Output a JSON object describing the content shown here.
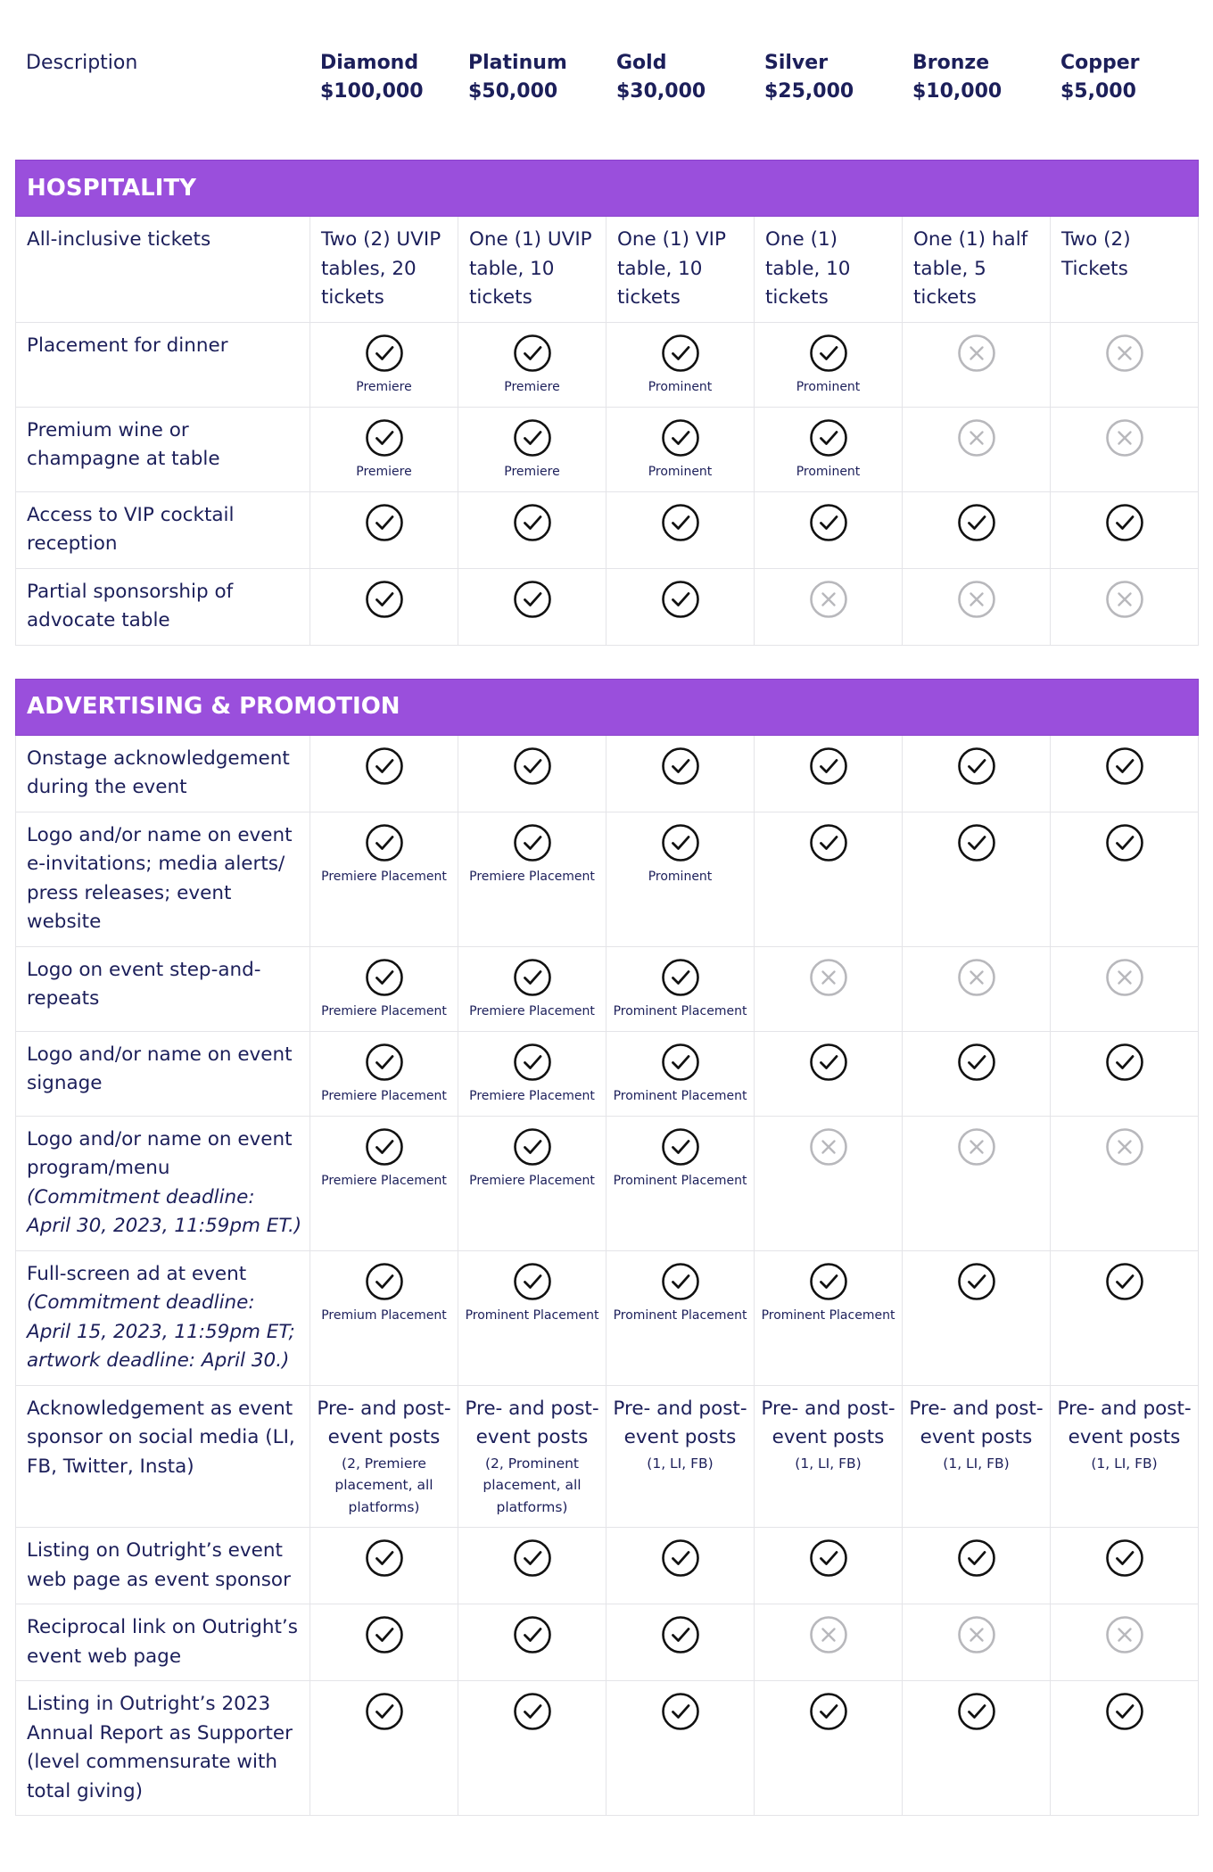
{
  "header": {
    "description": "Description",
    "tiers": [
      {
        "name": "Diamond",
        "price": "$100,000"
      },
      {
        "name": "Platinum",
        "price": "$50,000"
      },
      {
        "name": "Gold",
        "price": "$30,000"
      },
      {
        "name": "Silver",
        "price": "$25,000"
      },
      {
        "name": "Bronze",
        "price": "$10,000"
      },
      {
        "name": "Copper",
        "price": "$5,000"
      }
    ]
  },
  "sections": [
    {
      "title": "HOSPITALITY",
      "rows": [
        {
          "label": "All-inclusive tickets",
          "cells": [
            {
              "text": "Two (2) UVIP tables, 20 tickets"
            },
            {
              "text": "One (1) UVIP table, 10 tickets"
            },
            {
              "text": "One (1) VIP table, 10 tickets"
            },
            {
              "text": "One (1) table, 10 tickets"
            },
            {
              "text": "One (1) half table, 5 tickets"
            },
            {
              "text": "Two (2) Tickets"
            }
          ]
        },
        {
          "label": "Placement for dinner",
          "cells": [
            {
              "included": true,
              "note": "Premiere"
            },
            {
              "included": true,
              "note": "Premiere"
            },
            {
              "included": true,
              "note": "Prominent"
            },
            {
              "included": true,
              "note": "Prominent"
            },
            {
              "included": false
            },
            {
              "included": false
            }
          ]
        },
        {
          "label": "Premium wine or champagne at table",
          "cells": [
            {
              "included": true,
              "note": "Premiere"
            },
            {
              "included": true,
              "note": "Premiere"
            },
            {
              "included": true,
              "note": "Prominent"
            },
            {
              "included": true,
              "note": "Prominent"
            },
            {
              "included": false
            },
            {
              "included": false
            }
          ]
        },
        {
          "label": "Access to VIP cocktail reception",
          "cells": [
            {
              "included": true
            },
            {
              "included": true
            },
            {
              "included": true
            },
            {
              "included": true
            },
            {
              "included": true
            },
            {
              "included": true
            }
          ]
        },
        {
          "label": "Partial sponsorship of advocate table",
          "cells": [
            {
              "included": true
            },
            {
              "included": true
            },
            {
              "included": true
            },
            {
              "included": false
            },
            {
              "included": false
            },
            {
              "included": false
            }
          ]
        }
      ]
    },
    {
      "title": "ADVERTISING & PROMOTION",
      "rows": [
        {
          "label": "Onstage acknowledgement during the event",
          "cells": [
            {
              "included": true
            },
            {
              "included": true
            },
            {
              "included": true
            },
            {
              "included": true
            },
            {
              "included": true
            },
            {
              "included": true
            }
          ]
        },
        {
          "label": "Logo and/or name on event e-invitations; media alerts/ press releases; event website",
          "cells": [
            {
              "included": true,
              "note": "Premiere Placement"
            },
            {
              "included": true,
              "note": "Premiere Placement"
            },
            {
              "included": true,
              "note": "Prominent"
            },
            {
              "included": true
            },
            {
              "included": true
            },
            {
              "included": true
            }
          ]
        },
        {
          "label": "Logo on event step-and-repeats",
          "cells": [
            {
              "included": true,
              "note": "Premiere Placement"
            },
            {
              "included": true,
              "note": "Premiere Placement"
            },
            {
              "included": true,
              "note": "Prominent Placement"
            },
            {
              "included": false
            },
            {
              "included": false
            },
            {
              "included": false
            }
          ]
        },
        {
          "label": "Logo and/or name on event signage",
          "cells": [
            {
              "included": true,
              "note": "Premiere Placement"
            },
            {
              "included": true,
              "note": "Premiere Placement"
            },
            {
              "included": true,
              "note": "Prominent Placement"
            },
            {
              "included": true
            },
            {
              "included": true
            },
            {
              "included": true
            }
          ]
        },
        {
          "label": "Logo and/or name on event program/menu",
          "label_note": "(Commitment deadline: April 30, 2023, 11:59pm ET.)",
          "cells": [
            {
              "included": true,
              "note": "Premiere Placement"
            },
            {
              "included": true,
              "note": "Premiere Placement"
            },
            {
              "included": true,
              "note": "Prominent Placement"
            },
            {
              "included": false
            },
            {
              "included": false
            },
            {
              "included": false
            }
          ]
        },
        {
          "label": "Full-screen ad at event",
          "label_note": "(Commitment deadline: April 15, 2023, 11:59pm ET; artwork deadline: April 30.)",
          "cells": [
            {
              "included": true,
              "note": "Premium Placement"
            },
            {
              "included": true,
              "note": "Prominent Placement"
            },
            {
              "included": true,
              "note": "Prominent Placement"
            },
            {
              "included": true,
              "note": "Prominent Placement"
            },
            {
              "included": true
            },
            {
              "included": true
            }
          ]
        },
        {
          "label": "Acknowledgement as event sponsor on social media (LI, FB, Twitter, Insta)",
          "cells": [
            {
              "text": "Pre- and post-event posts",
              "note": "(2, Premiere placement, all platforms)"
            },
            {
              "text": "Pre- and post-event posts",
              "note": "(2, Prominent placement, all platforms)"
            },
            {
              "text": "Pre- and post-event posts",
              "note": "(1, LI, FB)"
            },
            {
              "text": "Pre- and post-event posts",
              "note": "(1, LI, FB)"
            },
            {
              "text": "Pre- and post-event posts",
              "note": "(1, LI, FB)"
            },
            {
              "text": "Pre- and post-event posts",
              "note": "(1, LI, FB)"
            }
          ]
        },
        {
          "label": "Listing on Outright’s event web page as event sponsor",
          "cells": [
            {
              "included": true
            },
            {
              "included": true
            },
            {
              "included": true
            },
            {
              "included": true
            },
            {
              "included": true
            },
            {
              "included": true
            }
          ]
        },
        {
          "label": "Reciprocal link on Outright’s event web page",
          "cells": [
            {
              "included": true
            },
            {
              "included": true
            },
            {
              "included": true
            },
            {
              "included": false
            },
            {
              "included": false
            },
            {
              "included": false
            }
          ]
        },
        {
          "label": "Listing in Outright’s 2023 Annual Report as Supporter (level commensurate with total giving)",
          "cells": [
            {
              "included": true
            },
            {
              "included": true
            },
            {
              "included": true
            },
            {
              "included": true
            },
            {
              "included": true
            },
            {
              "included": true
            }
          ]
        }
      ]
    }
  ]
}
